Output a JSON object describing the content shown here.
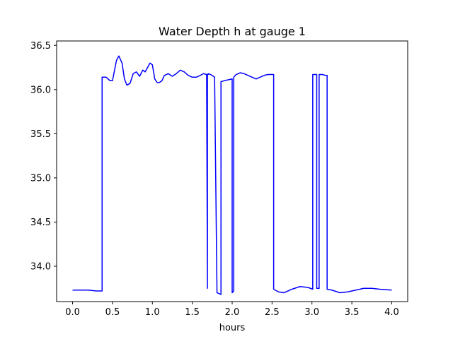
{
  "chart_data": {
    "type": "line",
    "title": "Water Depth h at gauge 1",
    "xlabel": "hours",
    "ylabel": "",
    "xlim": [
      -0.2,
      4.2
    ],
    "ylim": [
      33.6,
      36.55
    ],
    "xticks": [
      0.0,
      0.5,
      1.0,
      1.5,
      2.0,
      2.5,
      3.0,
      3.5,
      4.0
    ],
    "xtick_labels": [
      "0.0",
      "0.5",
      "1.0",
      "1.5",
      "2.0",
      "2.5",
      "3.0",
      "3.5",
      "4.0"
    ],
    "yticks": [
      34.0,
      34.5,
      35.0,
      35.5,
      36.0,
      36.5
    ],
    "ytick_labels": [
      "34.0",
      "34.5",
      "35.0",
      "35.5",
      "36.0",
      "36.5"
    ],
    "grid": false,
    "line_color": "#0000ff",
    "series": [
      {
        "x": [
          0.0,
          0.1,
          0.2,
          0.3,
          0.37,
          0.37,
          0.42,
          0.47,
          0.5,
          0.55,
          0.58,
          0.62,
          0.65,
          0.68,
          0.72,
          0.76,
          0.8,
          0.84,
          0.88,
          0.91,
          0.94,
          0.97,
          1.0,
          1.03,
          1.06,
          1.09,
          1.12,
          1.15,
          1.2,
          1.25,
          1.3,
          1.35,
          1.4,
          1.45,
          1.5,
          1.55,
          1.6,
          1.64,
          1.68,
          1.69,
          1.69,
          1.7,
          1.7,
          1.73,
          1.78,
          1.81,
          1.81,
          1.86,
          1.86,
          1.9,
          1.95,
          2.0,
          2.0,
          2.02,
          2.02,
          2.05,
          2.1,
          2.15,
          2.2,
          2.3,
          2.4,
          2.45,
          2.52,
          2.52,
          2.58,
          2.65,
          2.75,
          2.85,
          2.95,
          3.01,
          3.01,
          3.06,
          3.06,
          3.09,
          3.09,
          3.13,
          3.17,
          3.19,
          3.19,
          3.25,
          3.35,
          3.45,
          3.55,
          3.65,
          3.75,
          3.85,
          4.0
        ],
        "y": [
          33.73,
          33.73,
          33.73,
          33.72,
          33.72,
          36.14,
          36.14,
          36.1,
          36.1,
          36.33,
          36.38,
          36.3,
          36.12,
          36.05,
          36.07,
          36.18,
          36.2,
          36.15,
          36.22,
          36.2,
          36.25,
          36.3,
          36.28,
          36.12,
          36.08,
          36.08,
          36.1,
          36.16,
          36.18,
          36.15,
          36.18,
          36.22,
          36.2,
          36.16,
          36.14,
          36.14,
          36.16,
          36.18,
          36.17,
          33.75,
          36.17,
          36.17,
          36.18,
          36.17,
          36.14,
          33.7,
          33.7,
          33.68,
          36.09,
          36.1,
          36.11,
          36.12,
          33.7,
          33.72,
          36.14,
          36.17,
          36.19,
          36.18,
          36.16,
          36.12,
          36.16,
          36.17,
          36.17,
          33.74,
          33.71,
          33.7,
          33.74,
          33.77,
          33.76,
          33.74,
          36.17,
          36.17,
          33.75,
          33.75,
          36.17,
          36.17,
          36.16,
          36.16,
          33.74,
          33.73,
          33.7,
          33.71,
          33.73,
          33.75,
          33.75,
          33.74,
          33.73
        ]
      }
    ]
  }
}
